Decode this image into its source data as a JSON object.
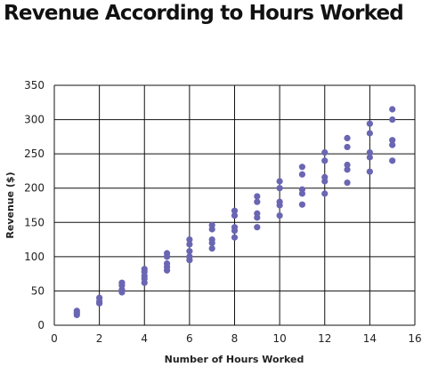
{
  "chart_data": {
    "type": "scatter",
    "title": "Revenue According to Hours Worked",
    "xlabel": "Number of Hours Worked",
    "ylabel": "Revenue ($)",
    "xlim": [
      0,
      16
    ],
    "ylim": [
      0,
      350
    ],
    "xticks": [
      0,
      2,
      4,
      6,
      8,
      10,
      12,
      14,
      16
    ],
    "yticks": [
      0,
      50,
      100,
      150,
      200,
      250,
      300,
      350
    ],
    "grid": true,
    "legend": "none",
    "point_color": "#6a66b3",
    "points": [
      {
        "x": 1,
        "y": 15
      },
      {
        "x": 1,
        "y": 18
      },
      {
        "x": 1,
        "y": 21
      },
      {
        "x": 2,
        "y": 32
      },
      {
        "x": 2,
        "y": 35
      },
      {
        "x": 2,
        "y": 40
      },
      {
        "x": 3,
        "y": 48
      },
      {
        "x": 3,
        "y": 52
      },
      {
        "x": 3,
        "y": 58
      },
      {
        "x": 3,
        "y": 62
      },
      {
        "x": 4,
        "y": 62
      },
      {
        "x": 4,
        "y": 68
      },
      {
        "x": 4,
        "y": 72
      },
      {
        "x": 4,
        "y": 78
      },
      {
        "x": 4,
        "y": 82
      },
      {
        "x": 5,
        "y": 80
      },
      {
        "x": 5,
        "y": 85
      },
      {
        "x": 5,
        "y": 90
      },
      {
        "x": 5,
        "y": 100
      },
      {
        "x": 5,
        "y": 105
      },
      {
        "x": 6,
        "y": 95
      },
      {
        "x": 6,
        "y": 100
      },
      {
        "x": 6,
        "y": 108
      },
      {
        "x": 6,
        "y": 118
      },
      {
        "x": 6,
        "y": 125
      },
      {
        "x": 7,
        "y": 112
      },
      {
        "x": 7,
        "y": 120
      },
      {
        "x": 7,
        "y": 125
      },
      {
        "x": 7,
        "y": 140
      },
      {
        "x": 7,
        "y": 146
      },
      {
        "x": 8,
        "y": 128
      },
      {
        "x": 8,
        "y": 138
      },
      {
        "x": 8,
        "y": 143
      },
      {
        "x": 8,
        "y": 160
      },
      {
        "x": 8,
        "y": 167
      },
      {
        "x": 9,
        "y": 143
      },
      {
        "x": 9,
        "y": 157
      },
      {
        "x": 9,
        "y": 163
      },
      {
        "x": 9,
        "y": 180
      },
      {
        "x": 9,
        "y": 188
      },
      {
        "x": 10,
        "y": 160
      },
      {
        "x": 10,
        "y": 175
      },
      {
        "x": 10,
        "y": 180
      },
      {
        "x": 10,
        "y": 200
      },
      {
        "x": 10,
        "y": 210
      },
      {
        "x": 11,
        "y": 176
      },
      {
        "x": 11,
        "y": 192
      },
      {
        "x": 11,
        "y": 198
      },
      {
        "x": 11,
        "y": 220
      },
      {
        "x": 11,
        "y": 231
      },
      {
        "x": 12,
        "y": 192
      },
      {
        "x": 12,
        "y": 210
      },
      {
        "x": 12,
        "y": 216
      },
      {
        "x": 12,
        "y": 240
      },
      {
        "x": 12,
        "y": 252
      },
      {
        "x": 13,
        "y": 208
      },
      {
        "x": 13,
        "y": 227
      },
      {
        "x": 13,
        "y": 234
      },
      {
        "x": 13,
        "y": 260
      },
      {
        "x": 13,
        "y": 273
      },
      {
        "x": 14,
        "y": 224
      },
      {
        "x": 14,
        "y": 245
      },
      {
        "x": 14,
        "y": 252
      },
      {
        "x": 14,
        "y": 280
      },
      {
        "x": 14,
        "y": 294
      },
      {
        "x": 15,
        "y": 240
      },
      {
        "x": 15,
        "y": 263
      },
      {
        "x": 15,
        "y": 270
      },
      {
        "x": 15,
        "y": 300
      },
      {
        "x": 15,
        "y": 315
      }
    ]
  }
}
